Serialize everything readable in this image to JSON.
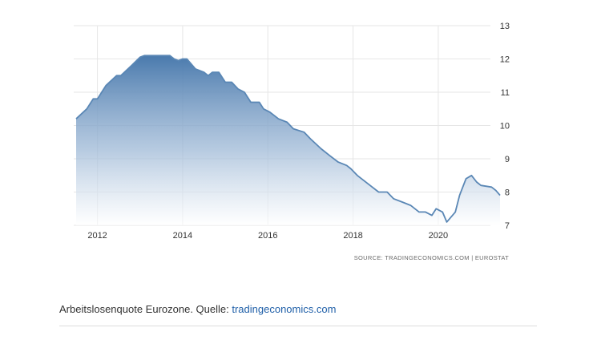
{
  "chart_data": {
    "type": "area",
    "title": "",
    "xlabel": "",
    "ylabel": "",
    "xlim": [
      2011.5,
      2021.45
    ],
    "ylim": [
      7,
      13
    ],
    "x_ticks": [
      2012,
      2014,
      2016,
      2018,
      2020
    ],
    "x_tick_labels": [
      "2012",
      "2014",
      "2016",
      "2018",
      "2020"
    ],
    "y_ticks": [
      7,
      8,
      9,
      10,
      11,
      12,
      13
    ],
    "y_tick_labels": [
      "7",
      "8",
      "9",
      "10",
      "11",
      "12",
      "13"
    ],
    "grid": true,
    "legend": "none",
    "colors": {
      "line": "#5a87b5",
      "fill_top": "#4a7aad",
      "fill_bottom": "#ffffff"
    },
    "source": "SOURCE: TRADINGECONOMICS.COM  |  EUROSTAT",
    "series": [
      {
        "points": [
          [
            2011.5,
            10.2
          ],
          [
            2011.75,
            10.5
          ],
          [
            2011.9,
            10.8
          ],
          [
            2012.0,
            10.8
          ],
          [
            2012.2,
            11.2
          ],
          [
            2012.45,
            11.5
          ],
          [
            2012.55,
            11.5
          ],
          [
            2012.8,
            11.8
          ],
          [
            2013.0,
            12.05
          ],
          [
            2013.1,
            12.1
          ],
          [
            2013.4,
            12.1
          ],
          [
            2013.6,
            12.1
          ],
          [
            2013.7,
            12.1
          ],
          [
            2013.8,
            12.0
          ],
          [
            2013.9,
            11.95
          ],
          [
            2014.0,
            12.0
          ],
          [
            2014.1,
            12.0
          ],
          [
            2014.3,
            11.7
          ],
          [
            2014.5,
            11.6
          ],
          [
            2014.6,
            11.5
          ],
          [
            2014.7,
            11.6
          ],
          [
            2014.85,
            11.6
          ],
          [
            2015.0,
            11.3
          ],
          [
            2015.15,
            11.3
          ],
          [
            2015.3,
            11.1
          ],
          [
            2015.45,
            11.0
          ],
          [
            2015.6,
            10.7
          ],
          [
            2015.8,
            10.7
          ],
          [
            2015.9,
            10.5
          ],
          [
            2016.05,
            10.4
          ],
          [
            2016.25,
            10.2
          ],
          [
            2016.45,
            10.1
          ],
          [
            2016.6,
            9.9
          ],
          [
            2016.85,
            9.8
          ],
          [
            2017.0,
            9.6
          ],
          [
            2017.25,
            9.3
          ],
          [
            2017.45,
            9.1
          ],
          [
            2017.65,
            8.9
          ],
          [
            2017.85,
            8.8
          ],
          [
            2017.95,
            8.7
          ],
          [
            2018.1,
            8.5
          ],
          [
            2018.4,
            8.2
          ],
          [
            2018.6,
            8.0
          ],
          [
            2018.8,
            8.0
          ],
          [
            2018.95,
            7.8
          ],
          [
            2019.15,
            7.7
          ],
          [
            2019.35,
            7.6
          ],
          [
            2019.55,
            7.4
          ],
          [
            2019.7,
            7.4
          ],
          [
            2019.85,
            7.3
          ],
          [
            2019.95,
            7.5
          ],
          [
            2020.1,
            7.4
          ],
          [
            2020.2,
            7.1
          ],
          [
            2020.4,
            7.4
          ],
          [
            2020.5,
            7.9
          ],
          [
            2020.65,
            8.4
          ],
          [
            2020.78,
            8.5
          ],
          [
            2020.9,
            8.3
          ],
          [
            2021.0,
            8.2
          ],
          [
            2021.25,
            8.15
          ],
          [
            2021.35,
            8.05
          ],
          [
            2021.45,
            7.9
          ]
        ]
      }
    ]
  },
  "caption": {
    "text": "Arbeitslosenquote Eurozone. Quelle: ",
    "link_text": "tradingeconomics.com"
  }
}
